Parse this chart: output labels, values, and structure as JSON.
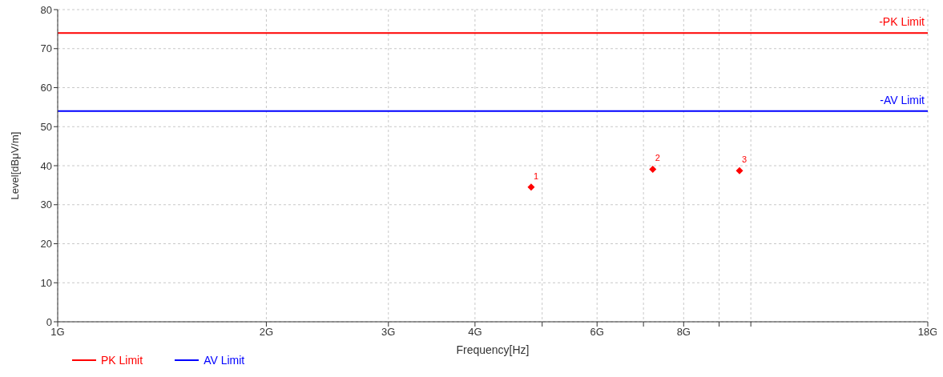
{
  "chart_data": {
    "type": "scatter",
    "xlabel": "Frequency[Hz]",
    "ylabel": "Level[dBμV/m]",
    "log": "x",
    "grid": true,
    "legend": "bottom left",
    "marker": "diamond",
    "xlim": [
      1,
      18
    ],
    "xticks": [
      {
        "value": 1,
        "label": "1G"
      },
      {
        "value": 2,
        "label": "2G"
      },
      {
        "value": 3,
        "label": "3G"
      },
      {
        "value": 4,
        "label": "4G"
      },
      {
        "value": 5,
        "label": null
      },
      {
        "value": 6,
        "label": "6G"
      },
      {
        "value": 7,
        "label": null
      },
      {
        "value": 8,
        "label": "8G"
      },
      {
        "value": 9,
        "label": null
      },
      {
        "value": 10,
        "label": null
      },
      {
        "value": 18,
        "label": "18G"
      }
    ],
    "ylim": [
      0,
      80
    ],
    "yticks": [
      0,
      10,
      20,
      30,
      40,
      50,
      60,
      70,
      80
    ],
    "series": [
      {
        "name": "PK Limit",
        "type": "line",
        "line_style": "solid",
        "marker": "none",
        "color": "#ff0000",
        "x": [
          1,
          18
        ],
        "values": [
          74,
          74
        ]
      },
      {
        "name": "AV Limit",
        "type": "line",
        "line_style": "solid",
        "marker": "none",
        "color": "#0000ff",
        "x": [
          1,
          18
        ],
        "values": [
          54,
          54
        ]
      },
      {
        "color": "#ff0000",
        "x": [
          4.82,
          7.22,
          9.63
        ],
        "values": [
          34.5,
          39.1,
          38.7
        ]
      }
    ],
    "annotations": [
      {
        "text": "-PK Limit",
        "x": 18,
        "y": 74
      },
      {
        "text": "-AV Limit",
        "x": 18,
        "y": 54
      },
      {
        "text": "1",
        "x": 4.82,
        "y": 34.5
      },
      {
        "text": "2",
        "x": 7.22,
        "y": 39.1
      },
      {
        "text": "3",
        "x": 9.63,
        "y": 38.7
      }
    ]
  }
}
